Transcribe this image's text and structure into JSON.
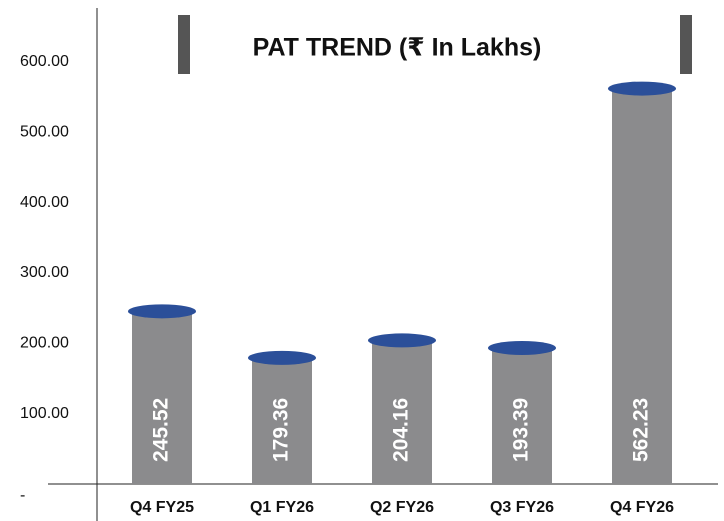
{
  "chart_data": {
    "type": "bar",
    "title": "PAT TREND (₹ In Lakhs)",
    "categories": [
      "Q4 FY25",
      "Q1 FY26",
      "Q2 FY26",
      "Q3 FY26",
      "Q4 FY26"
    ],
    "values": [
      245.52,
      179.36,
      204.16,
      193.39,
      562.23
    ],
    "color": "#8b8b8d",
    "cap_color": "#2b4f99",
    "ylim": [
      0,
      600
    ],
    "yticks": [
      {
        "value": 0,
        "label": "-"
      },
      {
        "value": 100,
        "label": "100.00"
      },
      {
        "value": 200,
        "label": "200.00"
      },
      {
        "value": 300,
        "label": "300.00"
      },
      {
        "value": 400,
        "label": "400.00"
      },
      {
        "value": 500,
        "label": "500.00"
      },
      {
        "value": 600,
        "label": "600.00"
      }
    ],
    "grid": false
  }
}
